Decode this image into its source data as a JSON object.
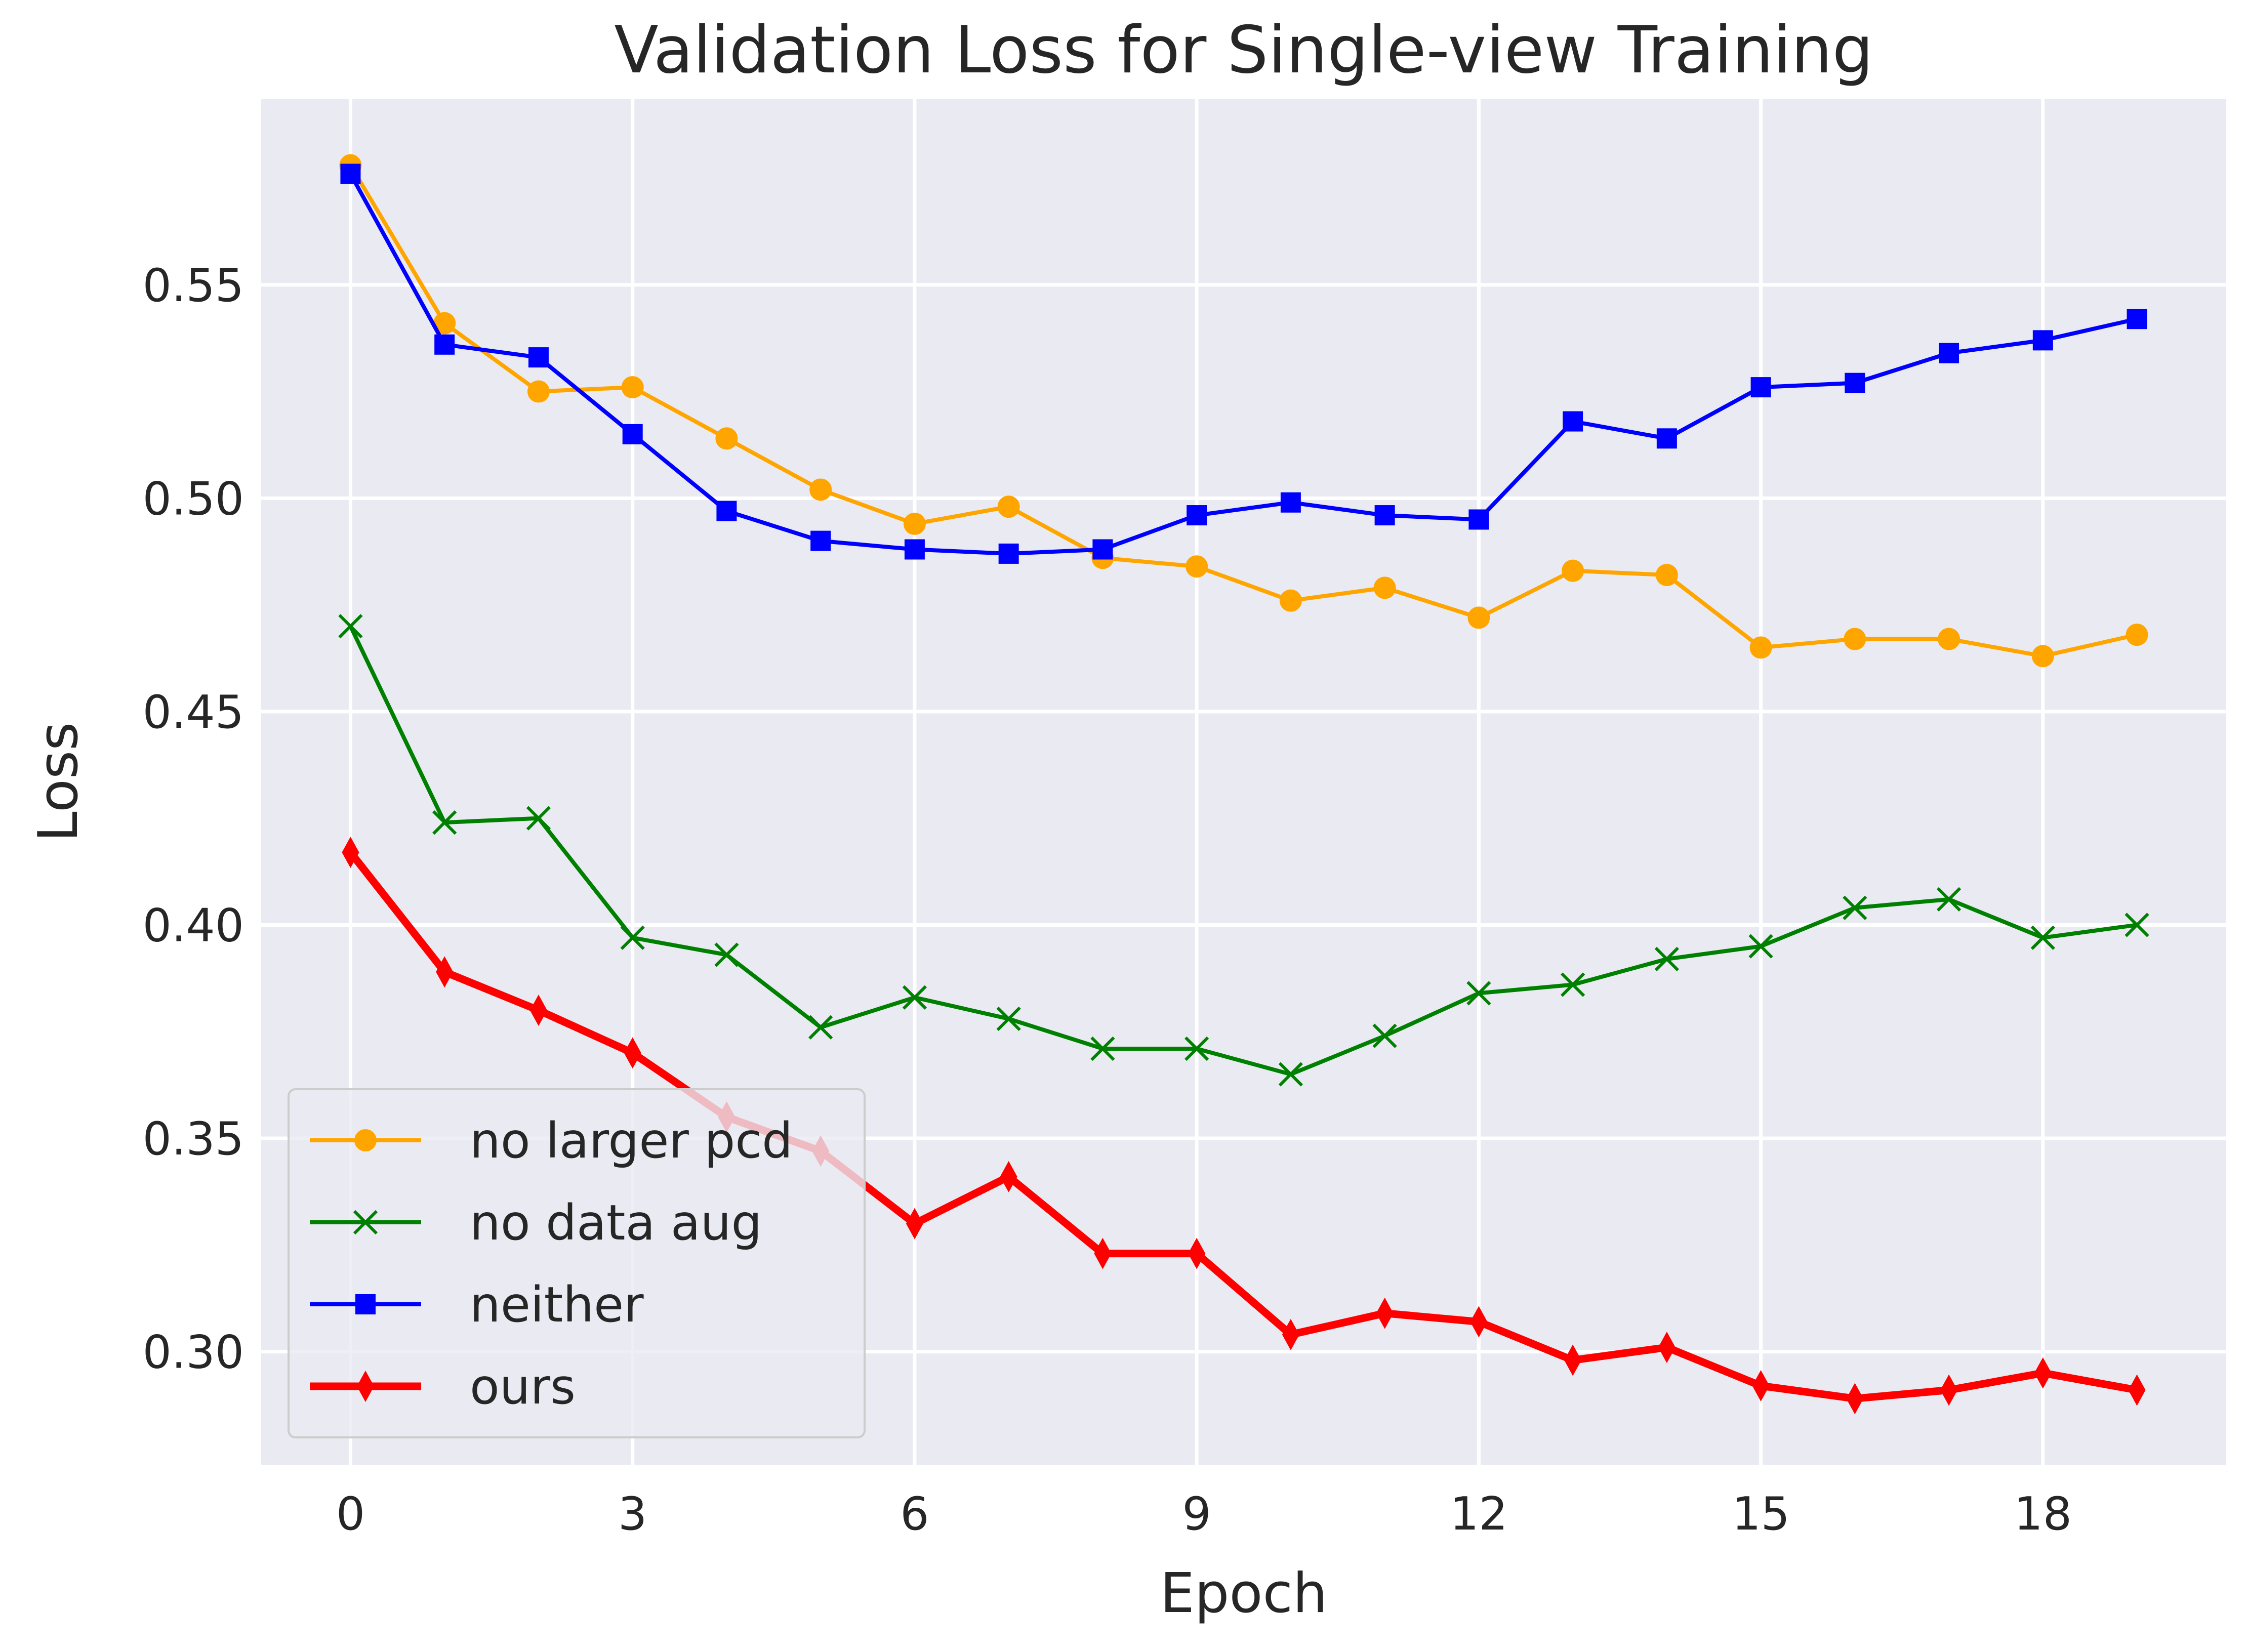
{
  "chart_data": {
    "type": "line",
    "title": "Validation Loss for Single-view Training",
    "xlabel": "Epoch",
    "ylabel": "Loss",
    "xlim": [
      -0.95,
      19.95
    ],
    "ylim": [
      0.2735,
      0.5935
    ],
    "xticks": [
      0,
      3,
      6,
      9,
      12,
      15,
      18
    ],
    "xtick_labels": [
      "0",
      "3",
      "6",
      "9",
      "12",
      "15",
      "18"
    ],
    "yticks": [
      0.3,
      0.35,
      0.4,
      0.45,
      0.5,
      0.55
    ],
    "ytick_labels": [
      "0.30",
      "0.35",
      "0.40",
      "0.45",
      "0.50",
      "0.55"
    ],
    "grid": true,
    "legend_position": "lower-left",
    "x": [
      0,
      1,
      2,
      3,
      4,
      5,
      6,
      7,
      8,
      9,
      10,
      11,
      12,
      13,
      14,
      15,
      16,
      17,
      18,
      19
    ],
    "series": [
      {
        "name": "no larger pcd",
        "color": "#ffa500",
        "marker": "circle",
        "line_weight": "normal",
        "values": [
          0.578,
          0.541,
          0.525,
          0.526,
          0.514,
          0.502,
          0.494,
          0.498,
          0.486,
          0.484,
          0.476,
          0.479,
          0.472,
          0.483,
          0.482,
          0.465,
          0.467,
          0.467,
          0.463,
          0.468
        ]
      },
      {
        "name": "no data aug",
        "color": "#008000",
        "marker": "x",
        "line_weight": "normal",
        "values": [
          0.47,
          0.424,
          0.425,
          0.397,
          0.393,
          0.376,
          0.383,
          0.378,
          0.371,
          0.371,
          0.365,
          0.374,
          0.384,
          0.386,
          0.392,
          0.395,
          0.404,
          0.406,
          0.397,
          0.4
        ]
      },
      {
        "name": "neither",
        "color": "#0000ff",
        "marker": "square",
        "line_weight": "normal",
        "values": [
          0.576,
          0.536,
          0.533,
          0.515,
          0.497,
          0.49,
          0.488,
          0.487,
          0.488,
          0.496,
          0.499,
          0.496,
          0.495,
          0.518,
          0.514,
          0.526,
          0.527,
          0.534,
          0.537,
          0.542
        ]
      },
      {
        "name": "ours",
        "color": "#ff0000",
        "marker": "thin-diamond",
        "line_weight": "bold",
        "values": [
          0.417,
          0.389,
          0.38,
          0.37,
          0.355,
          0.347,
          0.33,
          0.341,
          0.323,
          0.323,
          0.304,
          0.309,
          0.307,
          0.298,
          0.301,
          0.292,
          0.289,
          0.291,
          0.295,
          0.291
        ]
      }
    ]
  }
}
